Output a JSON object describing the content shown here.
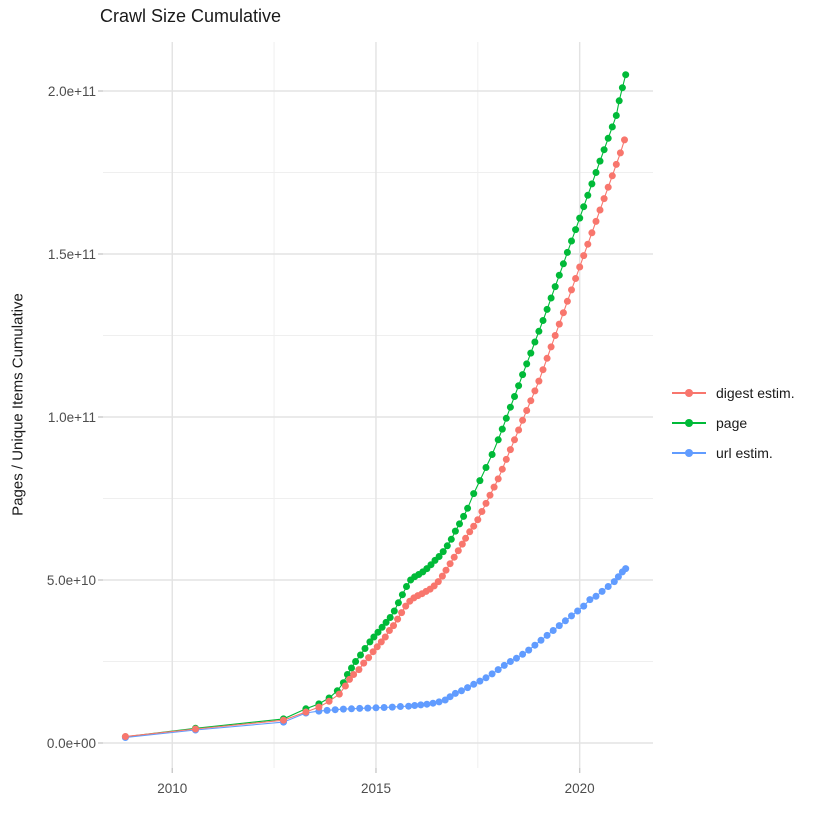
{
  "chart_data": {
    "type": "scatter",
    "title": "Crawl Size Cumulative",
    "xlabel": "",
    "ylabel": "Pages / Unique Items Cumulative",
    "value_unit": "pages, stored in billions (multiply by 1e9)",
    "x_ticks": [
      {
        "value": 2010,
        "label": "2010"
      },
      {
        "value": 2015,
        "label": "2015"
      },
      {
        "value": 2020,
        "label": "2020"
      }
    ],
    "x_minor_ticks": [
      2012.5,
      2017.5
    ],
    "y_ticks": [
      {
        "value": 0,
        "label": "0.0e+00"
      },
      {
        "value": 50,
        "label": "5.0e+10"
      },
      {
        "value": 100,
        "label": "1.0e+11"
      },
      {
        "value": 150,
        "label": "1.5e+11"
      },
      {
        "value": 200,
        "label": "2.0e+11"
      }
    ],
    "y_minor_ticks": [
      25,
      75,
      125,
      175
    ],
    "xlim": [
      2008.3,
      2021.8
    ],
    "ylim_e9": [
      0,
      215
    ],
    "grid": "major+minor",
    "legend_position": "right",
    "series": [
      {
        "name": "digest estim.",
        "color": "#F8766D",
        "points": [
          [
            2008.85,
            2.0
          ],
          [
            2010.57,
            4.3
          ],
          [
            2012.73,
            7.0
          ],
          [
            2013.28,
            9.5
          ],
          [
            2013.6,
            11.0
          ],
          [
            2013.85,
            12.8
          ],
          [
            2014.1,
            15.0
          ],
          [
            2014.25,
            17.5
          ],
          [
            2014.35,
            19.5
          ],
          [
            2014.45,
            21.0
          ],
          [
            2014.58,
            22.5
          ],
          [
            2014.7,
            24.5
          ],
          [
            2014.82,
            26.2
          ],
          [
            2014.93,
            28.0
          ],
          [
            2015.03,
            29.5
          ],
          [
            2015.13,
            31.0
          ],
          [
            2015.23,
            32.5
          ],
          [
            2015.33,
            34.5
          ],
          [
            2015.43,
            36.0
          ],
          [
            2015.53,
            38.0
          ],
          [
            2015.63,
            40.0
          ],
          [
            2015.73,
            42.0
          ],
          [
            2015.83,
            43.5
          ],
          [
            2015.93,
            44.5
          ],
          [
            2016.03,
            45.2
          ],
          [
            2016.13,
            45.8
          ],
          [
            2016.23,
            46.5
          ],
          [
            2016.33,
            47.2
          ],
          [
            2016.43,
            48.2
          ],
          [
            2016.53,
            49.5
          ],
          [
            2016.63,
            51.2
          ],
          [
            2016.72,
            53.0
          ],
          [
            2016.82,
            55.0
          ],
          [
            2016.92,
            57.0
          ],
          [
            2017.02,
            59.0
          ],
          [
            2017.12,
            61.0
          ],
          [
            2017.2,
            62.8
          ],
          [
            2017.3,
            64.8
          ],
          [
            2017.4,
            66.5
          ],
          [
            2017.5,
            68.5
          ],
          [
            2017.6,
            71.0
          ],
          [
            2017.7,
            73.5
          ],
          [
            2017.8,
            76.0
          ],
          [
            2017.9,
            78.5
          ],
          [
            2018.0,
            81.0
          ],
          [
            2018.1,
            84.0
          ],
          [
            2018.2,
            87.0
          ],
          [
            2018.3,
            90.0
          ],
          [
            2018.4,
            93.0
          ],
          [
            2018.5,
            96.0
          ],
          [
            2018.6,
            99.0
          ],
          [
            2018.7,
            102.0
          ],
          [
            2018.8,
            105.0
          ],
          [
            2018.9,
            108.0
          ],
          [
            2019.0,
            111.0
          ],
          [
            2019.1,
            114.5
          ],
          [
            2019.2,
            118.0
          ],
          [
            2019.3,
            121.5
          ],
          [
            2019.4,
            125.0
          ],
          [
            2019.5,
            128.5
          ],
          [
            2019.6,
            132.0
          ],
          [
            2019.7,
            135.5
          ],
          [
            2019.8,
            139.0
          ],
          [
            2019.9,
            142.5
          ],
          [
            2020.0,
            146.0
          ],
          [
            2020.1,
            149.5
          ],
          [
            2020.2,
            153.0
          ],
          [
            2020.3,
            156.5
          ],
          [
            2020.4,
            160.0
          ],
          [
            2020.5,
            163.5
          ],
          [
            2020.6,
            167.0
          ],
          [
            2020.7,
            170.5
          ],
          [
            2020.8,
            174.0
          ],
          [
            2020.9,
            177.5
          ],
          [
            2021.0,
            181.0
          ],
          [
            2021.1,
            185.0
          ]
        ]
      },
      {
        "name": "page",
        "color": "#00BA38",
        "points": [
          [
            2008.85,
            1.9
          ],
          [
            2010.57,
            4.5
          ],
          [
            2012.73,
            7.4
          ],
          [
            2013.28,
            10.5
          ],
          [
            2013.6,
            12.0
          ],
          [
            2013.85,
            13.8
          ],
          [
            2014.05,
            16.0
          ],
          [
            2014.2,
            18.5
          ],
          [
            2014.3,
            21.0
          ],
          [
            2014.4,
            23.0
          ],
          [
            2014.5,
            25.0
          ],
          [
            2014.62,
            27.0
          ],
          [
            2014.73,
            29.0
          ],
          [
            2014.85,
            31.0
          ],
          [
            2014.95,
            32.5
          ],
          [
            2015.05,
            34.0
          ],
          [
            2015.15,
            35.5
          ],
          [
            2015.25,
            37.0
          ],
          [
            2015.35,
            38.5
          ],
          [
            2015.45,
            40.5
          ],
          [
            2015.55,
            43.0
          ],
          [
            2015.65,
            45.5
          ],
          [
            2015.75,
            48.0
          ],
          [
            2015.85,
            50.0
          ],
          [
            2015.95,
            51.0
          ],
          [
            2016.05,
            51.7
          ],
          [
            2016.15,
            52.5
          ],
          [
            2016.25,
            53.5
          ],
          [
            2016.35,
            54.7
          ],
          [
            2016.45,
            56.0
          ],
          [
            2016.55,
            57.2
          ],
          [
            2016.65,
            58.7
          ],
          [
            2016.75,
            60.5
          ],
          [
            2016.85,
            62.5
          ],
          [
            2016.95,
            65.0
          ],
          [
            2017.05,
            67.2
          ],
          [
            2017.15,
            69.5
          ],
          [
            2017.25,
            72.0
          ],
          [
            2017.4,
            76.5
          ],
          [
            2017.55,
            80.5
          ],
          [
            2017.7,
            84.5
          ],
          [
            2017.85,
            88.5
          ],
          [
            2018.0,
            93.0
          ],
          [
            2018.1,
            96.3
          ],
          [
            2018.2,
            99.6
          ],
          [
            2018.3,
            103.0
          ],
          [
            2018.4,
            106.3
          ],
          [
            2018.5,
            109.6
          ],
          [
            2018.6,
            113.0
          ],
          [
            2018.7,
            116.3
          ],
          [
            2018.8,
            119.6
          ],
          [
            2018.9,
            123.0
          ],
          [
            2019.0,
            126.3
          ],
          [
            2019.1,
            129.6
          ],
          [
            2019.2,
            133.0
          ],
          [
            2019.3,
            136.5
          ],
          [
            2019.4,
            140.0
          ],
          [
            2019.5,
            143.5
          ],
          [
            2019.6,
            147.0
          ],
          [
            2019.7,
            150.5
          ],
          [
            2019.8,
            154.0
          ],
          [
            2019.9,
            157.5
          ],
          [
            2020.0,
            161.0
          ],
          [
            2020.1,
            164.5
          ],
          [
            2020.2,
            168.0
          ],
          [
            2020.3,
            171.5
          ],
          [
            2020.4,
            175.0
          ],
          [
            2020.5,
            178.5
          ],
          [
            2020.6,
            182.0
          ],
          [
            2020.7,
            185.5
          ],
          [
            2020.8,
            189.0
          ],
          [
            2020.9,
            192.5
          ],
          [
            2020.97,
            197.0
          ],
          [
            2021.05,
            201.0
          ],
          [
            2021.13,
            205.0
          ]
        ]
      },
      {
        "name": "url estim.",
        "color": "#619CFF",
        "points": [
          [
            2008.85,
            1.7
          ],
          [
            2010.57,
            4.0
          ],
          [
            2012.73,
            6.4
          ],
          [
            2013.28,
            9.2
          ],
          [
            2013.6,
            9.8
          ],
          [
            2013.8,
            10.0
          ],
          [
            2014.0,
            10.2
          ],
          [
            2014.2,
            10.4
          ],
          [
            2014.4,
            10.5
          ],
          [
            2014.6,
            10.6
          ],
          [
            2014.8,
            10.7
          ],
          [
            2015.0,
            10.8
          ],
          [
            2015.2,
            10.9
          ],
          [
            2015.4,
            11.0
          ],
          [
            2015.6,
            11.2
          ],
          [
            2015.8,
            11.3
          ],
          [
            2015.95,
            11.5
          ],
          [
            2016.1,
            11.7
          ],
          [
            2016.25,
            11.9
          ],
          [
            2016.4,
            12.2
          ],
          [
            2016.55,
            12.6
          ],
          [
            2016.7,
            13.2
          ],
          [
            2016.82,
            14.2
          ],
          [
            2016.95,
            15.2
          ],
          [
            2017.1,
            16.0
          ],
          [
            2017.25,
            17.0
          ],
          [
            2017.4,
            18.0
          ],
          [
            2017.55,
            19.0
          ],
          [
            2017.7,
            20.0
          ],
          [
            2017.85,
            21.2
          ],
          [
            2018.0,
            22.5
          ],
          [
            2018.15,
            23.8
          ],
          [
            2018.3,
            25.0
          ],
          [
            2018.45,
            26.0
          ],
          [
            2018.6,
            27.2
          ],
          [
            2018.75,
            28.5
          ],
          [
            2018.9,
            30.0
          ],
          [
            2019.05,
            31.5
          ],
          [
            2019.2,
            33.0
          ],
          [
            2019.35,
            34.5
          ],
          [
            2019.5,
            36.0
          ],
          [
            2019.65,
            37.5
          ],
          [
            2019.8,
            39.0
          ],
          [
            2019.95,
            40.5
          ],
          [
            2020.1,
            42.0
          ],
          [
            2020.25,
            44.0
          ],
          [
            2020.4,
            45.0
          ],
          [
            2020.55,
            46.5
          ],
          [
            2020.7,
            48.0
          ],
          [
            2020.85,
            49.5
          ],
          [
            2020.95,
            51.0
          ],
          [
            2021.05,
            52.5
          ],
          [
            2021.13,
            53.5
          ]
        ]
      }
    ]
  }
}
